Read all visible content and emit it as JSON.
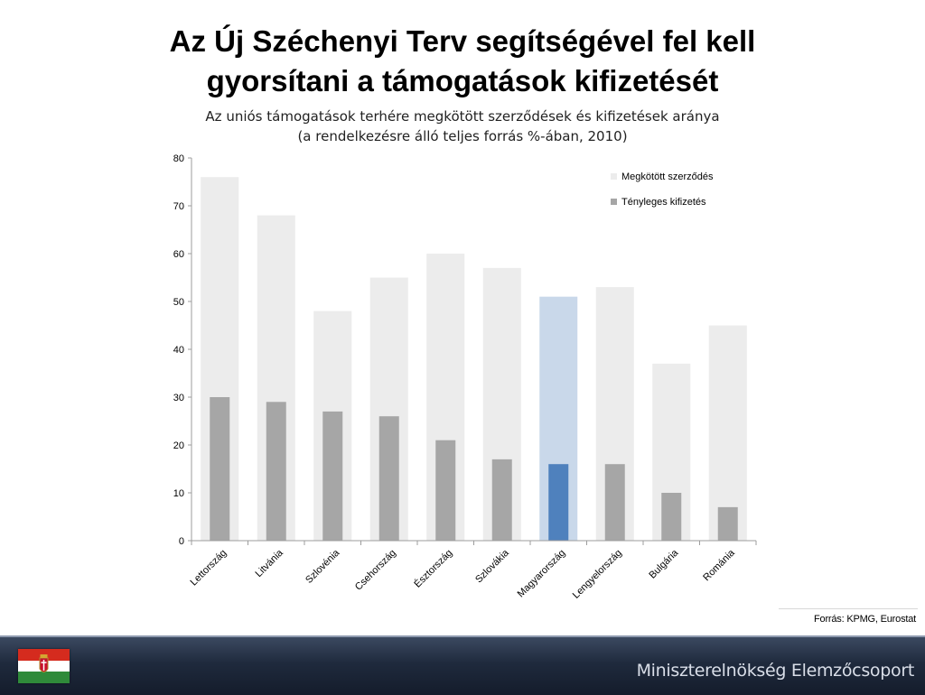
{
  "header": {
    "title_line1": "Az Új Széchenyi Terv segítségével fel kell",
    "title_line2": "gyorsítani a támogatások kifizetését",
    "subtitle_line1": "Az uniós támogatások terhére megkötött szerződések és kifizetések aránya",
    "subtitle_line2": "(a rendelkezésre álló teljes forrás %-ában, 2010)"
  },
  "chart_data": {
    "type": "bar",
    "categories": [
      "Lettország",
      "Litvánia",
      "Szlovénia",
      "Csehország",
      "Észtország",
      "Szlovákia",
      "Magyarország",
      "Lengyelország",
      "Bulgária",
      "Románia"
    ],
    "series": [
      {
        "name": "Megkötött szerződés",
        "values": [
          76,
          68,
          48,
          55,
          60,
          57,
          51,
          53,
          37,
          45
        ]
      },
      {
        "name": "Tényleges kifizetés",
        "values": [
          30,
          29,
          27,
          26,
          21,
          17,
          16,
          16,
          10,
          7
        ]
      }
    ],
    "highlight_category": "Magyarország",
    "ylim": [
      0,
      80
    ],
    "yticks": [
      0,
      10,
      20,
      30,
      40,
      50,
      60,
      70,
      80
    ],
    "legend_position": "top-right",
    "grid": false,
    "colors": {
      "contract": "#ececec",
      "payment": "#a6a6a6",
      "contract_highlight": "#c9d8ea",
      "payment_highlight": "#4f81bd",
      "axis": "#9c9c9c"
    }
  },
  "source": "Forrás: KPMG, Eurostat",
  "footer": {
    "organization": "Miniszterelnökség Elemzőcsoport"
  }
}
